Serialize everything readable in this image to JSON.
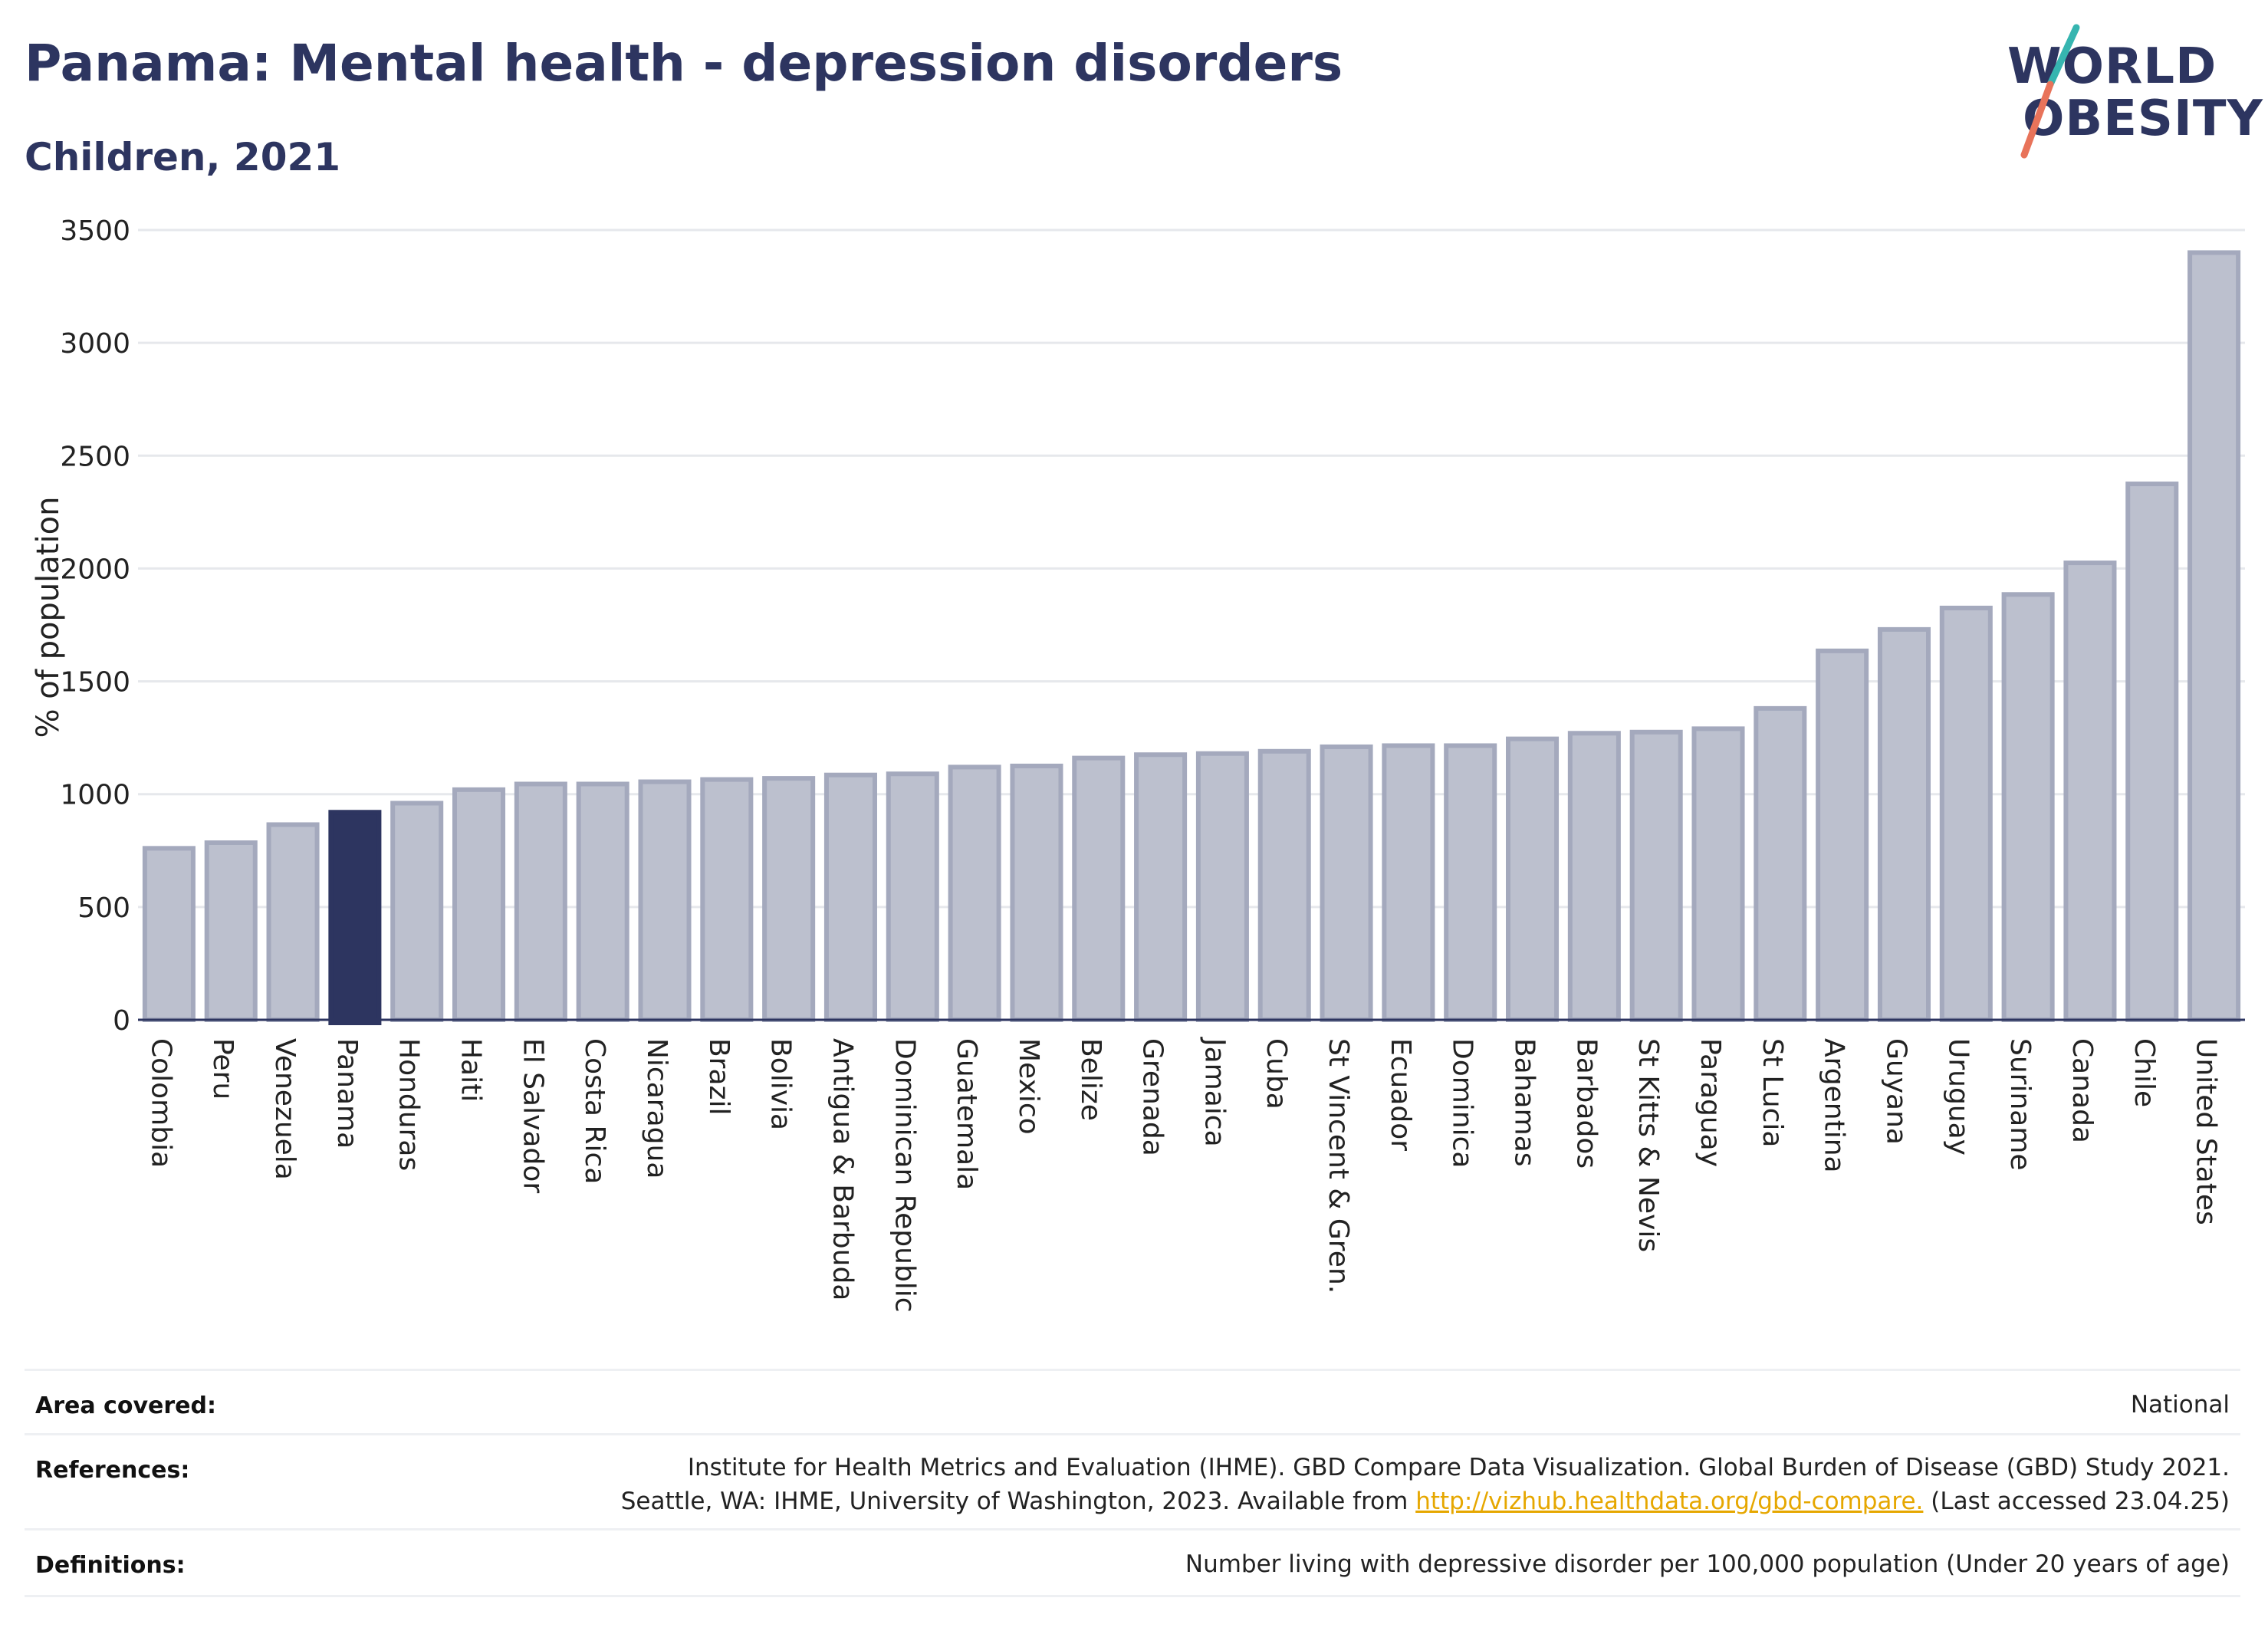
{
  "header": {
    "title": "Panama: Mental health - depression disorders",
    "subtitle": "Children, 2021"
  },
  "logo": {
    "line1": "WORLD",
    "line2": "OBESITY",
    "colors": {
      "text": "#2d3560",
      "slash_top": "#36b5b0",
      "slash_bottom": "#e8735a"
    }
  },
  "colors": {
    "bar_default": "#bcc0ce",
    "bar_border": "#a4a9bd",
    "bar_highlight": "#2d3560",
    "grid": "#e6e8ec",
    "axis": "#2d3560",
    "link": "#e6a700"
  },
  "chart_data": {
    "type": "bar",
    "title": "Panama: Mental health - depression disorders",
    "subtitle": "Children, 2021",
    "xlabel": "",
    "ylabel": "% of population",
    "ylim": [
      0,
      3500
    ],
    "yticks": [
      0,
      500,
      1000,
      1500,
      2000,
      2500,
      3000,
      3500
    ],
    "grid": true,
    "highlight": "Panama",
    "categories": [
      "Colombia",
      "Peru",
      "Venezuela",
      "Panama",
      "Honduras",
      "Haiti",
      "El Salvador",
      "Costa Rica",
      "Nicaragua",
      "Brazil",
      "Bolivia",
      "Antigua & Barbuda",
      "Dominican Republic",
      "Guatemala",
      "Mexico",
      "Belize",
      "Grenada",
      "Jamaica",
      "Cuba",
      "St Vincent & Gren.",
      "Ecuador",
      "Dominica",
      "Bahamas",
      "Barbados",
      "St Kitts & Nevis",
      "Paraguay",
      "St Lucia",
      "Argentina",
      "Guyana",
      "Uruguay",
      "Suriname",
      "Canada",
      "Chile",
      "United States"
    ],
    "values": [
      760,
      785,
      865,
      920,
      960,
      1020,
      1045,
      1045,
      1055,
      1065,
      1070,
      1085,
      1090,
      1120,
      1125,
      1160,
      1175,
      1180,
      1190,
      1210,
      1215,
      1215,
      1245,
      1270,
      1275,
      1290,
      1380,
      1635,
      1730,
      1825,
      1885,
      2025,
      2375,
      3400
    ]
  },
  "meta": {
    "area_label": "Area covered:",
    "area_value": "National",
    "references_label": "References:",
    "references_line1": "Institute for Health Metrics and Evaluation (IHME). GBD Compare Data Visualization. Global Burden of Disease (GBD) Study 2021.",
    "references_line2_prefix": "Seattle, WA: IHME, University of Washington, 2023. Available from",
    "references_link": "http://vizhub.healthdata.org/gbd-compare.",
    "references_line2_suffix": "(Last accessed 23.04.25)",
    "definitions_label": "Definitions:",
    "definitions_value": "Number living with depressive disorder per 100,000 population (Under 20 years of age)"
  }
}
